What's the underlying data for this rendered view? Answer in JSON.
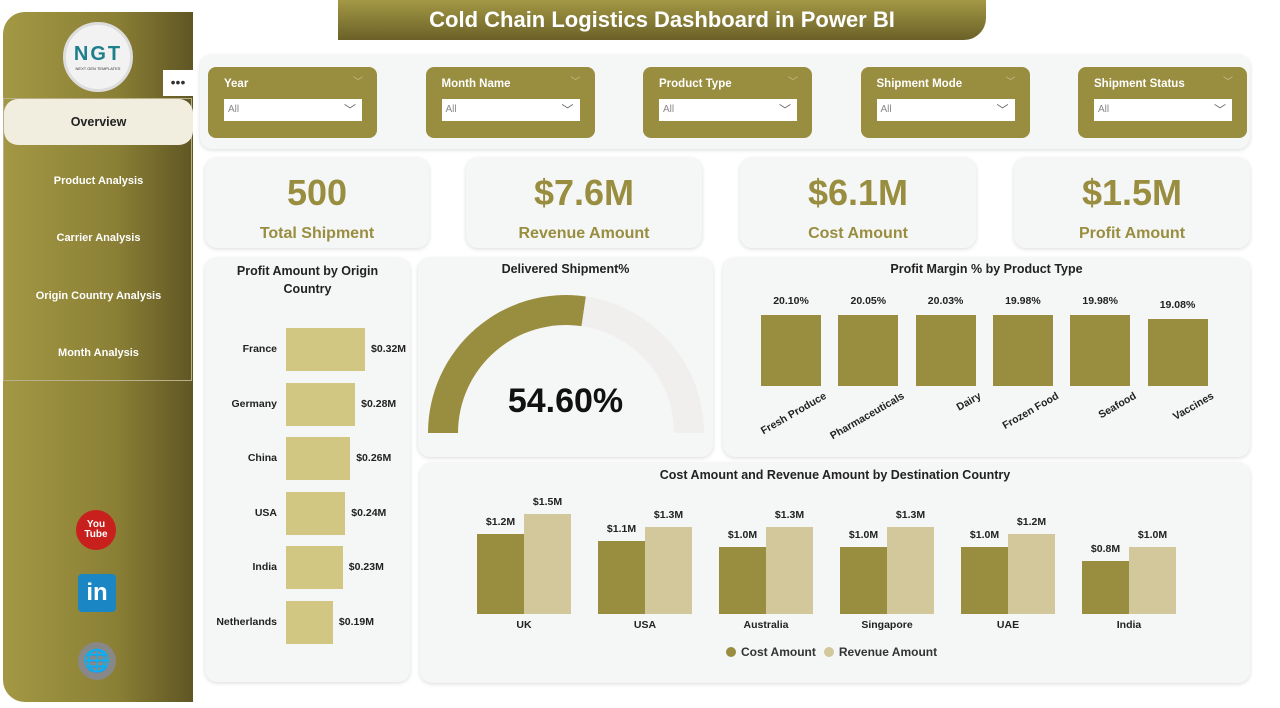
{
  "header": {
    "title": "Cold Chain Logistics Dashboard in Power BI"
  },
  "sidebar": {
    "logo_text": "NGT",
    "logo_sub": "NEXT GEN TEMPLATES",
    "more": "•••",
    "items": [
      {
        "label": "Overview",
        "active": true
      },
      {
        "label": "Product Analysis"
      },
      {
        "label": "Carrier Analysis"
      },
      {
        "label": "Origin Country Analysis"
      },
      {
        "label": "Month Analysis"
      }
    ],
    "social": [
      {
        "name": "youtube-icon",
        "label": "You Tube"
      },
      {
        "name": "linkedin-icon",
        "label": "in"
      },
      {
        "name": "globe-icon",
        "label": "🌐"
      }
    ]
  },
  "filters": [
    {
      "label": "Year",
      "value": "All"
    },
    {
      "label": "Month Name",
      "value": "All"
    },
    {
      "label": "Product Type",
      "value": "All"
    },
    {
      "label": "Shipment Mode",
      "value": "All"
    },
    {
      "label": "Shipment Status",
      "value": "All"
    }
  ],
  "kpis": [
    {
      "value": "500",
      "label": "Total Shipment"
    },
    {
      "value": "$7.6M",
      "label": "Revenue Amount"
    },
    {
      "value": "$6.1M",
      "label": "Cost Amount"
    },
    {
      "value": "$1.5M",
      "label": "Profit Amount"
    }
  ],
  "colors": {
    "primary": "#998d3f",
    "light": "#d1c682",
    "revenue": "#d3c79c"
  },
  "chart_data": [
    {
      "type": "bar",
      "orientation": "horizontal",
      "title": "Profit Amount by Origin Country",
      "categories": [
        "France",
        "Germany",
        "China",
        "USA",
        "India",
        "Netherlands"
      ],
      "values": [
        0.32,
        0.28,
        0.26,
        0.24,
        0.23,
        0.19
      ],
      "labels": [
        "$0.32M",
        "$0.28M",
        "$0.26M",
        "$0.24M",
        "$0.23M",
        "$0.19M"
      ],
      "unit": "$M"
    },
    {
      "type": "gauge",
      "title": "Delivered Shipment%",
      "value": 54.6,
      "label": "54.60%",
      "max": 100
    },
    {
      "type": "bar",
      "title": "Profit Margin % by Product Type",
      "categories": [
        "Fresh Produce",
        "Pharmaceuticals",
        "Dairy",
        "Frozen Food",
        "Seafood",
        "Vaccines"
      ],
      "values": [
        20.1,
        20.05,
        20.03,
        19.98,
        19.98,
        19.08
      ],
      "labels": [
        "20.10%",
        "20.05%",
        "20.03%",
        "19.98%",
        "19.98%",
        "19.08%"
      ]
    },
    {
      "type": "bar",
      "title": "Cost Amount and Revenue Amount by Destination Country",
      "categories": [
        "UK",
        "USA",
        "Australia",
        "Singapore",
        "UAE",
        "India"
      ],
      "series": [
        {
          "name": "Cost Amount",
          "values": [
            1.2,
            1.1,
            1.0,
            1.0,
            1.0,
            0.8
          ],
          "labels": [
            "$1.2M",
            "$1.1M",
            "$1.0M",
            "$1.0M",
            "$1.0M",
            "$0.8M"
          ]
        },
        {
          "name": "Revenue Amount",
          "values": [
            1.5,
            1.3,
            1.3,
            1.3,
            1.2,
            1.0
          ],
          "labels": [
            "$1.5M",
            "$1.3M",
            "$1.3M",
            "$1.3M",
            "$1.2M",
            "$1.0M"
          ]
        }
      ],
      "legend": "bottom"
    }
  ]
}
